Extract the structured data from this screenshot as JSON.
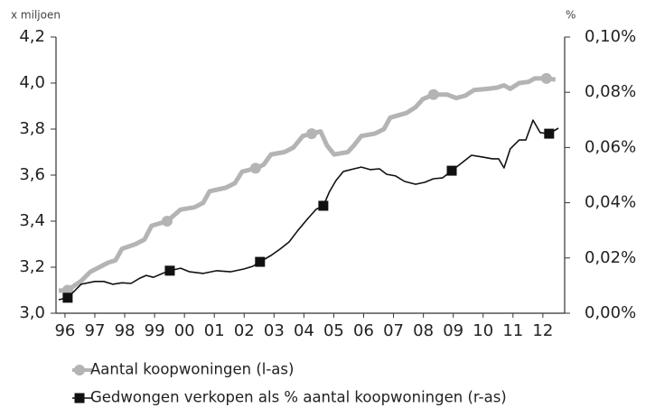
{
  "chart_data": {
    "type": "line",
    "y_label": "x miljoen",
    "y2_label": "%",
    "xlim": [
      1995.7,
      2012.73
    ],
    "xticks": [
      {
        "value": 1996,
        "label": "96"
      },
      {
        "value": 1997,
        "label": "97"
      },
      {
        "value": 1998,
        "label": "98"
      },
      {
        "value": 1999,
        "label": "99"
      },
      {
        "value": 2000,
        "label": "00"
      },
      {
        "value": 2001,
        "label": "01"
      },
      {
        "value": 2002,
        "label": "02"
      },
      {
        "value": 2003,
        "label": "03"
      },
      {
        "value": 2004,
        "label": "04"
      },
      {
        "value": 2005,
        "label": "05"
      },
      {
        "value": 2006,
        "label": "06"
      },
      {
        "value": 2007,
        "label": "07"
      },
      {
        "value": 2008,
        "label": "08"
      },
      {
        "value": 2009,
        "label": "09"
      },
      {
        "value": 2010,
        "label": "10"
      },
      {
        "value": 2011,
        "label": "11"
      },
      {
        "value": 2012,
        "label": "12"
      }
    ],
    "ylim": [
      3.0,
      4.2
    ],
    "yticks": [
      {
        "value": 3.0,
        "label": "3,0"
      },
      {
        "value": 3.2,
        "label": "3,2"
      },
      {
        "value": 3.4,
        "label": "3,4"
      },
      {
        "value": 3.6,
        "label": "3,6"
      },
      {
        "value": 3.8,
        "label": "3,8"
      },
      {
        "value": 4.0,
        "label": "4,0"
      },
      {
        "value": 4.2,
        "label": "4,2"
      }
    ],
    "y2lim": [
      0,
      0.1
    ],
    "y2ticks": [
      {
        "value": 0,
        "label": "0,00%"
      },
      {
        "value": 0.02,
        "label": "0,02%"
      },
      {
        "value": 0.04,
        "label": "0,04%"
      },
      {
        "value": 0.06,
        "label": "0,06%"
      },
      {
        "value": 0.08,
        "label": "0,08%"
      },
      {
        "value": 0.1,
        "label": "0,10%"
      }
    ],
    "series": [
      {
        "name": "Aantal koopwoningen (l-as)",
        "color": "#b4b4b4",
        "marker": "circle",
        "axis": "y",
        "x": [
          1995.79,
          1996.09,
          1996.54,
          1996.85,
          1997.45,
          1997.69,
          1997.91,
          1998.36,
          1998.66,
          1998.9,
          1999.42,
          1999.87,
          2000.33,
          2000.63,
          2000.84,
          2001.38,
          2001.69,
          2001.93,
          2002.38,
          2002.65,
          2002.9,
          2003.35,
          2003.65,
          2003.96,
          2004.26,
          2004.56,
          2004.77,
          2005.01,
          2005.47,
          2005.68,
          2005.92,
          2006.37,
          2006.68,
          2006.89,
          2007.43,
          2007.74,
          2007.98,
          2008.34,
          2008.79,
          2009.1,
          2009.4,
          2009.7,
          2010.16,
          2010.46,
          2010.7,
          2010.91,
          2011.21,
          2011.52,
          2011.73,
          2012.12,
          2012.42
        ],
        "values": [
          3.098,
          3.1,
          3.14,
          3.18,
          3.22,
          3.23,
          3.28,
          3.3,
          3.32,
          3.38,
          3.4,
          3.45,
          3.46,
          3.48,
          3.53,
          3.545,
          3.565,
          3.615,
          3.63,
          3.645,
          3.69,
          3.7,
          3.72,
          3.77,
          3.78,
          3.79,
          3.73,
          3.69,
          3.7,
          3.73,
          3.77,
          3.78,
          3.8,
          3.85,
          3.87,
          3.895,
          3.93,
          3.95,
          3.95,
          3.935,
          3.945,
          3.97,
          3.975,
          3.98,
          3.99,
          3.975,
          4.0,
          4.005,
          4.02,
          4.02,
          4.015
        ],
        "marker_points": [
          1,
          10,
          18,
          24,
          37,
          49
        ]
      },
      {
        "name": "Gedwongen verkopen als % aantal koopwoningen (r-as)",
        "color": "#111111",
        "marker": "square",
        "axis": "y2",
        "x": [
          1995.79,
          1996.09,
          1996.54,
          1997.0,
          1997.3,
          1997.6,
          1997.91,
          1998.21,
          1998.51,
          1998.72,
          1998.96,
          1999.27,
          1999.51,
          1999.87,
          2000.17,
          2000.63,
          2001.08,
          2001.54,
          2001.99,
          2002.29,
          2002.53,
          2002.9,
          2003.2,
          2003.5,
          2003.8,
          2004.11,
          2004.41,
          2004.65,
          2004.86,
          2005.07,
          2005.32,
          2005.68,
          2005.92,
          2006.22,
          2006.53,
          2006.77,
          2007.07,
          2007.37,
          2007.74,
          2008.04,
          2008.34,
          2008.64,
          2008.95,
          2009.31,
          2009.61,
          2010.0,
          2010.31,
          2010.52,
          2010.7,
          2010.91,
          2011.21,
          2011.43,
          2011.67,
          2011.91,
          2012.21,
          2012.52
        ],
        "values": [
          0.0049,
          0.0056,
          0.0105,
          0.0115,
          0.0115,
          0.0105,
          0.011,
          0.0108,
          0.0127,
          0.0137,
          0.013,
          0.0144,
          0.0154,
          0.0163,
          0.015,
          0.0144,
          0.0154,
          0.015,
          0.016,
          0.017,
          0.0186,
          0.0209,
          0.0232,
          0.0258,
          0.03,
          0.034,
          0.0376,
          0.0389,
          0.0441,
          0.048,
          0.0513,
          0.0523,
          0.0529,
          0.052,
          0.0523,
          0.0503,
          0.0497,
          0.0477,
          0.0467,
          0.0474,
          0.0487,
          0.049,
          0.0516,
          0.0546,
          0.0572,
          0.0565,
          0.0559,
          0.0559,
          0.0526,
          0.0595,
          0.0627,
          0.0627,
          0.0699,
          0.0654,
          0.065,
          0.067
        ],
        "marker_points": [
          1,
          12,
          20,
          27,
          42,
          54
        ]
      }
    ]
  }
}
